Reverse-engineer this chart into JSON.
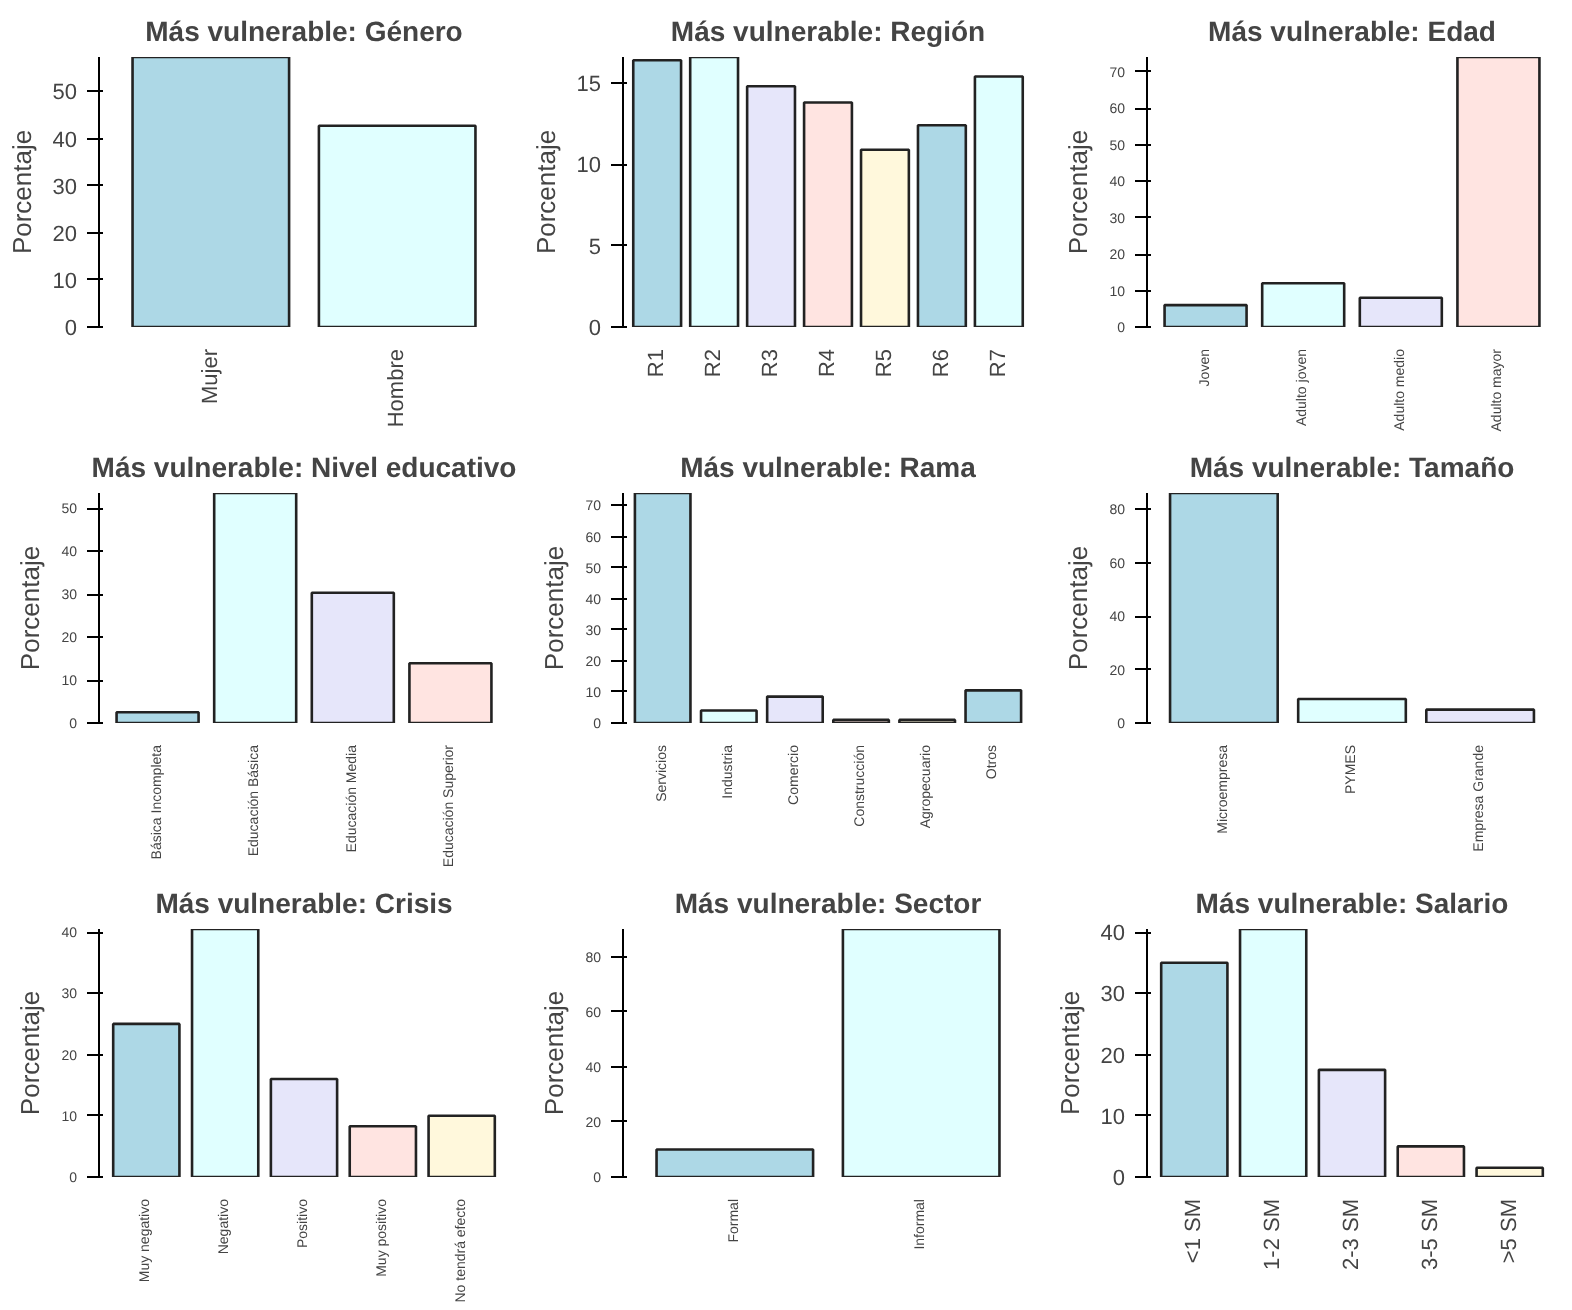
{
  "chart_data": [
    {
      "type": "bar",
      "title": "Más vulnerable: Género",
      "ylabel": "Porcentaje",
      "categories": [
        "Mujer",
        "Hombre"
      ],
      "values": [
        57.3,
        42.7
      ],
      "colors": [
        "#add8e6",
        "#e0ffff"
      ],
      "ylim": [
        0,
        57.3
      ],
      "yticks": [
        0,
        10,
        20,
        30,
        40,
        50
      ]
    },
    {
      "type": "bar",
      "title": "Más vulnerable: Región",
      "ylabel": "Porcentaje",
      "categories": [
        "R1",
        "R2",
        "R3",
        "R4",
        "R5",
        "R6",
        "R7"
      ],
      "values": [
        16.4,
        16.6,
        14.8,
        13.8,
        10.9,
        12.4,
        15.4
      ],
      "colors": [
        "#add8e6",
        "#e0ffff",
        "#e6e6fa",
        "#ffe4e1",
        "#fff8dc",
        "#add8e6",
        "#e0ffff"
      ],
      "ylim": [
        0,
        16.6
      ],
      "yticks": [
        0,
        5,
        10,
        15
      ]
    },
    {
      "type": "bar",
      "title": "Más vulnerable: Edad",
      "ylabel": "Porcentaje",
      "categories": [
        "Joven",
        "Adulto joven",
        "Adulto medio",
        "Adulto mayor"
      ],
      "values": [
        6,
        12,
        8,
        74
      ],
      "colors": [
        "#add8e6",
        "#e0ffff",
        "#e6e6fa",
        "#ffe4e1"
      ],
      "ylim": [
        0,
        74
      ],
      "yticks": [
        0,
        10,
        20,
        30,
        40,
        50,
        60,
        70
      ]
    },
    {
      "type": "bar",
      "title": "Más vulnerable: Nivel educativo",
      "ylabel": "Porcentaje",
      "categories": [
        "Básica Incompleta",
        "Educación Básica",
        "Educación Media",
        "Educación Superior"
      ],
      "values": [
        2.5,
        53.5,
        30.3,
        13.9
      ],
      "colors": [
        "#add8e6",
        "#e0ffff",
        "#e6e6fa",
        "#ffe4e1"
      ],
      "ylim": [
        0,
        53.5
      ],
      "yticks": [
        0,
        10,
        20,
        30,
        40,
        50
      ]
    },
    {
      "type": "bar",
      "title": "Más vulnerable: Rama",
      "ylabel": "Porcentaje",
      "categories": [
        "Servicios",
        "Industria",
        "Comercio",
        "Construcción",
        "Agropecuario",
        "Otros"
      ],
      "values": [
        74,
        4,
        8.5,
        1,
        1,
        10.5
      ],
      "colors": [
        "#add8e6",
        "#e0ffff",
        "#e6e6fa",
        "#ffe4e1",
        "#fff8dc",
        "#add8e6"
      ],
      "ylim": [
        0,
        74
      ],
      "yticks": [
        0,
        10,
        20,
        30,
        40,
        50,
        60,
        70
      ]
    },
    {
      "type": "bar",
      "title": "Más vulnerable: Tamaño",
      "ylabel": "Porcentaje",
      "categories": [
        "Microempresa",
        "PYMES",
        "Empresa Grande"
      ],
      "values": [
        86,
        9,
        5
      ],
      "colors": [
        "#add8e6",
        "#e0ffff",
        "#e6e6fa"
      ],
      "ylim": [
        0,
        86
      ],
      "yticks": [
        0,
        20,
        40,
        60,
        80
      ]
    },
    {
      "type": "bar",
      "title": "Más vulnerable: Crisis",
      "ylabel": "Porcentaje",
      "categories": [
        "Muy negativo",
        "Negativo",
        "Positivo",
        "Muy positivo",
        "No tendrá efecto"
      ],
      "values": [
        25,
        40.5,
        16,
        8.3,
        10
      ],
      "colors": [
        "#add8e6",
        "#e0ffff",
        "#e6e6fa",
        "#ffe4e1",
        "#fff8dc"
      ],
      "ylim": [
        0,
        40.5
      ],
      "yticks": [
        0,
        10,
        20,
        30,
        40
      ]
    },
    {
      "type": "bar",
      "title": "Más vulnerable: Sector",
      "ylabel": "Porcentaje",
      "categories": [
        "Formal",
        "Informal"
      ],
      "values": [
        10,
        90
      ],
      "colors": [
        "#add8e6",
        "#e0ffff"
      ],
      "ylim": [
        0,
        90
      ],
      "yticks": [
        0,
        20,
        40,
        60,
        80
      ]
    },
    {
      "type": "bar",
      "title": "Más vulnerable: Salario",
      "ylabel": "Porcentaje",
      "categories": [
        "<1 SM",
        "1-2 SM",
        "2-3 SM",
        "3-5 SM",
        ">5 SM"
      ],
      "values": [
        35,
        40.5,
        17.5,
        5,
        1.5
      ],
      "colors": [
        "#add8e6",
        "#e0ffff",
        "#e6e6fa",
        "#ffe4e1",
        "#fff8dc"
      ],
      "ylim": [
        0,
        40.5
      ],
      "yticks": [
        0,
        10,
        20,
        30,
        40
      ]
    }
  ]
}
